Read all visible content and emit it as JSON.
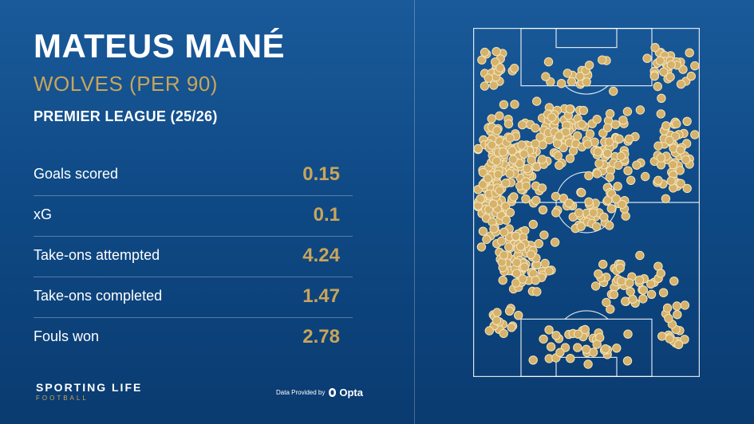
{
  "player": {
    "name": "MATEUS MANÉ",
    "team_label": "WOLVES (PER 90)",
    "competition": "PREMIER LEAGUE (25/26)"
  },
  "stats": [
    {
      "label": "Goals scored",
      "value": "0.15"
    },
    {
      "label": "xG",
      "value": "0.1"
    },
    {
      "label": "Take-ons attempted",
      "value": "4.24"
    },
    {
      "label": "Take-ons completed",
      "value": "1.47"
    },
    {
      "label": "Fouls won",
      "value": "2.78"
    }
  ],
  "brand": {
    "name": "SPORTING LIFE",
    "sub": "FOOTBALL"
  },
  "provider": {
    "text": "Data Provided by",
    "name": "Opta"
  },
  "colors": {
    "accent": "#c9a55a",
    "background": "#0f4a86",
    "dot_fill": "#d6b26a",
    "dot_stroke": "#f3e4bd"
  },
  "heatmap": {
    "seed": 12345
  }
}
